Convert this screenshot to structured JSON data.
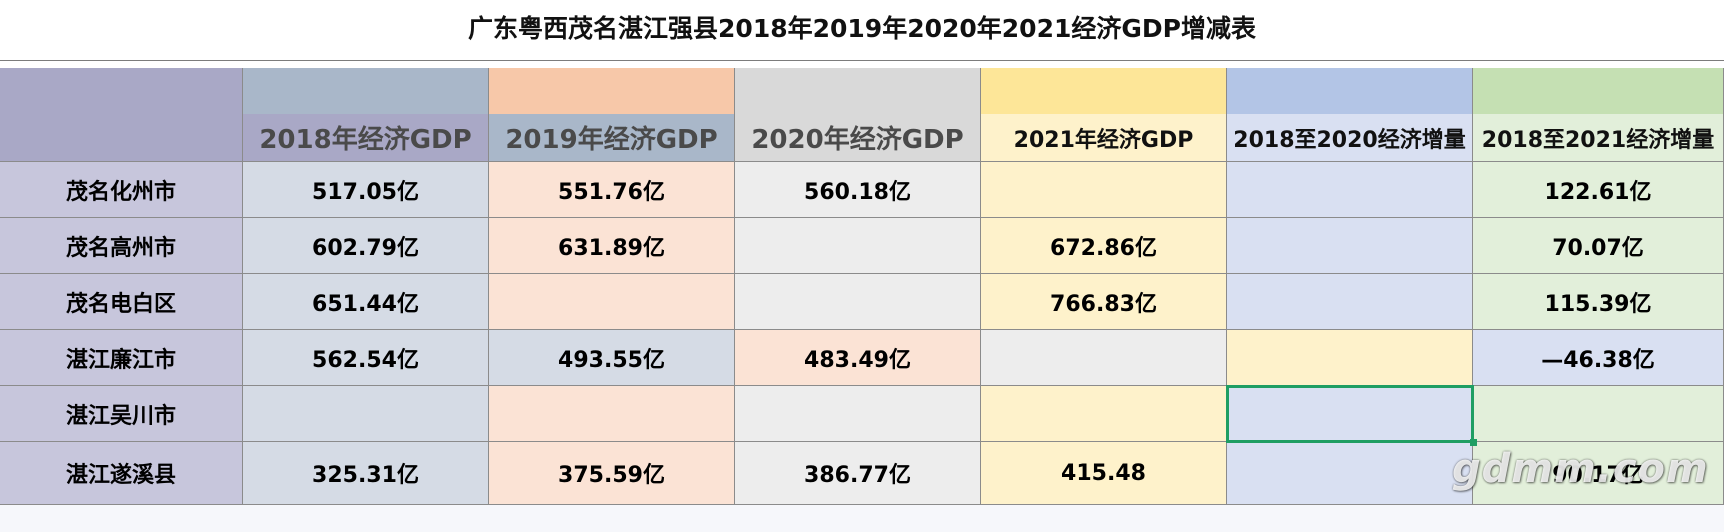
{
  "title": "广东粤西茂名湛江强县2018年2019年2020年2021经济GDP增减表",
  "columns": [
    {
      "label": ""
    },
    {
      "label": "2018年经济GDP"
    },
    {
      "label": "2019年经济GDP"
    },
    {
      "label": "2020年经济GDP"
    },
    {
      "label": "2021年经济GDP"
    },
    {
      "label": "2018至2020经济增量"
    },
    {
      "label": "2018至2021经济增量"
    }
  ],
  "rows": [
    {
      "name": "茂名化州市",
      "cells": [
        "517.05亿",
        "551.76亿",
        "560.18亿",
        "",
        "",
        "122.61亿"
      ]
    },
    {
      "name": "茂名高州市",
      "cells": [
        "602.79亿",
        "631.89亿",
        "",
        "672.86亿",
        "",
        "70.07亿"
      ]
    },
    {
      "name": "茂名电白区",
      "cells": [
        "651.44亿",
        "",
        "",
        "766.83亿",
        "",
        "115.39亿"
      ]
    },
    {
      "name": "湛江廉江市",
      "cells": [
        "562.54亿",
        "493.55亿",
        "483.49亿",
        "",
        "",
        "—46.38亿"
      ]
    },
    {
      "name": "湛江吴川市",
      "cells": [
        "",
        "",
        "",
        "",
        "",
        ""
      ]
    },
    {
      "name": "湛江遂溪县",
      "cells": [
        "325.31亿",
        "375.59亿",
        "386.77亿",
        "415.48",
        "",
        "90.17亿"
      ]
    }
  ],
  "colors": {
    "label_header": "#a9a8c6",
    "label_cells": "#c7c6dc",
    "blue_gray": "#d5dbe5",
    "blue_gray_header": "#a9b7c9",
    "peach": "#fbe3d5",
    "peach_top": "#f7c8a9",
    "gray": "#ededed",
    "gray_top": "#d9d9d9",
    "yellow": "#fef2cb",
    "yellow_top": "#fde698",
    "lavender": "#d9e0f2",
    "lavender_top": "#b3c5e6",
    "green": "#e2efda",
    "green_top": "#c5e0b3",
    "selection": "#1f9e63"
  },
  "watermark": "gdmm.com"
}
